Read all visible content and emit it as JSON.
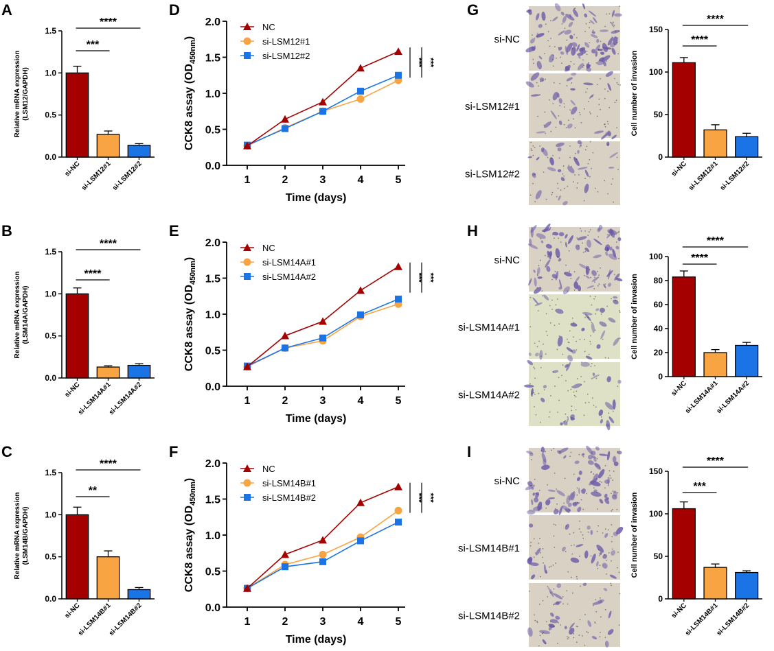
{
  "colors": {
    "nc": "#a50000",
    "si1": "#f9a443",
    "si2": "#1a74e6",
    "stroke": "#000000",
    "stain_bg": "#d9d1c4",
    "stain_bg_alt": "#dfe1c6",
    "stain_cell": "#6a5aa8"
  },
  "chart_data": [
    {
      "panel": "A",
      "type": "bar",
      "categories": [
        "si-NC",
        "si-LSM12#1",
        "si-LSM12#2"
      ],
      "values": [
        1.0,
        0.27,
        0.14
      ],
      "errors": [
        0.08,
        0.04,
        0.02
      ],
      "ylabel": "Relative mRNA expression (LSM12/GAPDH)",
      "ylim": [
        0,
        1.5
      ],
      "yticks": [
        "0.0",
        "0.5",
        "1.0",
        "1.5"
      ],
      "significance": [
        {
          "from": 0,
          "to": 1,
          "label": "***"
        },
        {
          "from": 0,
          "to": 2,
          "label": "****"
        }
      ]
    },
    {
      "panel": "B",
      "type": "bar",
      "categories": [
        "si-NC",
        "si-LSM14A#1",
        "si-LSM14A#2"
      ],
      "values": [
        1.0,
        0.13,
        0.15
      ],
      "errors": [
        0.07,
        0.015,
        0.02
      ],
      "ylabel": "Relative mRNA expression (LSM14A/GAPDH)",
      "ylim": [
        0,
        1.5
      ],
      "yticks": [
        "0.0",
        "0.5",
        "1.0",
        "1.5"
      ],
      "significance": [
        {
          "from": 0,
          "to": 1,
          "label": "****"
        },
        {
          "from": 0,
          "to": 2,
          "label": "****"
        }
      ]
    },
    {
      "panel": "C",
      "type": "bar",
      "categories": [
        "si-NC",
        "si-LSM14B#1",
        "si-LSM14B#2"
      ],
      "values": [
        1.0,
        0.5,
        0.11
      ],
      "errors": [
        0.09,
        0.07,
        0.025
      ],
      "ylabel": "Relative mRNA expression (LSM14B/GAPDH)",
      "ylim": [
        0,
        1.5
      ],
      "yticks": [
        "0.0",
        "0.5",
        "1.0",
        "1.5"
      ],
      "significance": [
        {
          "from": 0,
          "to": 1,
          "label": "**"
        },
        {
          "from": 0,
          "to": 2,
          "label": "****"
        }
      ]
    },
    {
      "panel": "D",
      "type": "line",
      "x": [
        1,
        2,
        3,
        4,
        5
      ],
      "series": [
        {
          "name": "NC",
          "values": [
            0.27,
            0.64,
            0.88,
            1.35,
            1.58
          ]
        },
        {
          "name": "si-LSM12#1",
          "values": [
            0.27,
            0.52,
            0.75,
            0.92,
            1.18
          ]
        },
        {
          "name": "si-LSM12#2",
          "values": [
            0.28,
            0.51,
            0.75,
            1.03,
            1.25
          ]
        }
      ],
      "xlabel": "Time (days)",
      "ylabel_main": "CCK8 assay (OD",
      "ylabel_sub": "450nm",
      "ylabel_end": ")",
      "ylim": [
        0,
        2.0
      ],
      "yticks": [
        "0.0",
        "0.5",
        "1.0",
        "1.5",
        "2.0"
      ],
      "xticks": [
        "1",
        "2",
        "3",
        "4",
        "5"
      ],
      "significance": [
        "***",
        "***"
      ]
    },
    {
      "panel": "E",
      "type": "line",
      "x": [
        1,
        2,
        3,
        4,
        5
      ],
      "series": [
        {
          "name": "NC",
          "values": [
            0.27,
            0.7,
            0.9,
            1.33,
            1.66
          ]
        },
        {
          "name": "si-LSM14A#1",
          "values": [
            0.27,
            0.53,
            0.63,
            0.97,
            1.14
          ]
        },
        {
          "name": "si-LSM14A#2",
          "values": [
            0.28,
            0.53,
            0.67,
            0.99,
            1.21
          ]
        }
      ],
      "xlabel": "Time (days)",
      "ylabel_main": "CCK8 assay (OD",
      "ylabel_sub": "450nm",
      "ylabel_end": ")",
      "ylim": [
        0,
        2.0
      ],
      "yticks": [
        "0.0",
        "0.5",
        "1.0",
        "1.5",
        "2.0"
      ],
      "xticks": [
        "1",
        "2",
        "3",
        "4",
        "5"
      ],
      "significance": [
        "***",
        "***"
      ]
    },
    {
      "panel": "F",
      "type": "line",
      "x": [
        1,
        2,
        3,
        4,
        5
      ],
      "series": [
        {
          "name": "NC",
          "values": [
            0.26,
            0.73,
            0.93,
            1.45,
            1.67
          ]
        },
        {
          "name": "si-LSM14B#1",
          "values": [
            0.26,
            0.59,
            0.73,
            0.97,
            1.34
          ]
        },
        {
          "name": "si-LSM14B#2",
          "values": [
            0.26,
            0.56,
            0.63,
            0.92,
            1.18
          ]
        }
      ],
      "xlabel": "Time (days)",
      "ylabel_main": "CCK8 assay (OD",
      "ylabel_sub": "450nm",
      "ylabel_end": ")",
      "ylim": [
        0,
        2.0
      ],
      "yticks": [
        "0.0",
        "0.5",
        "1.0",
        "1.5",
        "2.0"
      ],
      "xticks": [
        "1",
        "2",
        "3",
        "4",
        "5"
      ],
      "significance": [
        "***",
        "***"
      ]
    },
    {
      "panel": "G",
      "type": "bar",
      "categories": [
        "si-NC",
        "si-LSM12#1",
        "si-LSM12#2"
      ],
      "values": [
        111,
        32,
        24
      ],
      "errors": [
        6,
        6,
        4
      ],
      "ylabel": "Cell number of invasion",
      "ylim": [
        0,
        150
      ],
      "yticks": [
        "0",
        "50",
        "100",
        "150"
      ],
      "significance": [
        {
          "from": 0,
          "to": 1,
          "label": "****"
        },
        {
          "from": 0,
          "to": 2,
          "label": "****"
        }
      ],
      "image_labels": [
        "si-NC",
        "si-LSM12#1",
        "si-LSM12#2"
      ]
    },
    {
      "panel": "H",
      "type": "bar",
      "categories": [
        "si-NC",
        "si-LSM14A#1",
        "si-LSM14A#2"
      ],
      "values": [
        83,
        20,
        26
      ],
      "errors": [
        5,
        2.5,
        2.5
      ],
      "ylabel": "Cell number of invasion",
      "ylim": [
        0,
        100
      ],
      "yticks": [
        "0",
        "20",
        "40",
        "60",
        "80",
        "100"
      ],
      "significance": [
        {
          "from": 0,
          "to": 1,
          "label": "****"
        },
        {
          "from": 0,
          "to": 2,
          "label": "****"
        }
      ],
      "image_labels": [
        "si-NC",
        "si-LSM14A#1",
        "si-LSM14A#2"
      ]
    },
    {
      "panel": "I",
      "type": "bar",
      "categories": [
        "si-NC",
        "si-LSM14B#1",
        "si-LSM14B#2"
      ],
      "values": [
        106,
        37,
        31
      ],
      "errors": [
        8,
        4,
        2
      ],
      "ylabel": "Cell number of invasion",
      "ylim": [
        0,
        150
      ],
      "yticks": [
        "0",
        "50",
        "100",
        "150"
      ],
      "significance": [
        {
          "from": 0,
          "to": 1,
          "label": "***"
        },
        {
          "from": 0,
          "to": 2,
          "label": "****"
        }
      ],
      "image_labels": [
        "si-NC",
        "si-LSM14B#1",
        "si-LSM14B#2"
      ]
    }
  ]
}
